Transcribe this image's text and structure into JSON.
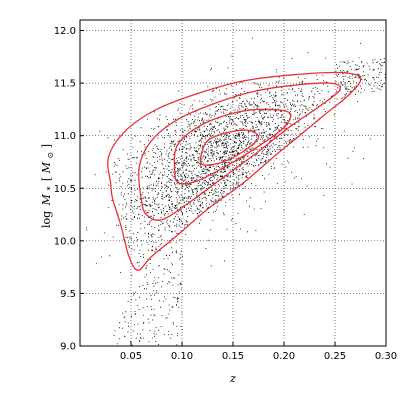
{
  "chart_data": {
    "type": "scatter",
    "title": "",
    "xlabel": "z",
    "ylabel_parts": {
      "log": "log",
      "M": "M",
      "sub": "*",
      "unit_open": "[",
      "unit_M": "M",
      "unit_sub": "⊙",
      "unit_close": "]"
    },
    "xlim": [
      0.0,
      0.3
    ],
    "ylim": [
      9.0,
      12.1
    ],
    "x_ticks": [
      0.05,
      0.1,
      0.15,
      0.2,
      0.25,
      0.3
    ],
    "x_tick_labels": [
      "0.05",
      "0.10",
      "0.15",
      "0.20",
      "0.25",
      "0.30"
    ],
    "y_ticks": [
      9.0,
      9.5,
      10.0,
      10.5,
      11.0,
      11.5,
      12.0
    ],
    "y_tick_labels": [
      "9.0",
      "9.5",
      "10.0",
      "10.5",
      "11.0",
      "11.5",
      "12.0"
    ],
    "grid": true,
    "point_color": "#000000",
    "contour_color": "#e8313a",
    "scatter_density": {
      "note_hidden": false,
      "approx_points": 9000,
      "center": [
        0.14,
        10.85
      ],
      "spread": [
        0.055,
        0.4
      ]
    },
    "contours": [
      {
        "level": "outer",
        "points": [
          [
            0.03,
            10.55
          ],
          [
            0.028,
            10.8
          ],
          [
            0.045,
            11.05
          ],
          [
            0.075,
            11.25
          ],
          [
            0.115,
            11.4
          ],
          [
            0.16,
            11.52
          ],
          [
            0.21,
            11.58
          ],
          [
            0.255,
            11.6
          ],
          [
            0.275,
            11.55
          ],
          [
            0.265,
            11.4
          ],
          [
            0.24,
            11.2
          ],
          [
            0.215,
            11.0
          ],
          [
            0.19,
            10.8
          ],
          [
            0.16,
            10.55
          ],
          [
            0.125,
            10.3
          ],
          [
            0.095,
            10.05
          ],
          [
            0.07,
            9.85
          ],
          [
            0.057,
            9.72
          ],
          [
            0.048,
            9.85
          ],
          [
            0.04,
            10.15
          ],
          [
            0.032,
            10.4
          ],
          [
            0.03,
            10.55
          ]
        ]
      },
      {
        "level": "mid",
        "points": [
          [
            0.06,
            10.4
          ],
          [
            0.058,
            10.7
          ],
          [
            0.07,
            10.95
          ],
          [
            0.095,
            11.15
          ],
          [
            0.13,
            11.3
          ],
          [
            0.17,
            11.42
          ],
          [
            0.21,
            11.48
          ],
          [
            0.245,
            11.5
          ],
          [
            0.255,
            11.44
          ],
          [
            0.235,
            11.28
          ],
          [
            0.205,
            11.08
          ],
          [
            0.175,
            10.85
          ],
          [
            0.14,
            10.6
          ],
          [
            0.105,
            10.35
          ],
          [
            0.08,
            10.2
          ],
          [
            0.065,
            10.25
          ],
          [
            0.06,
            10.4
          ]
        ]
      },
      {
        "level": "inner",
        "points": [
          [
            0.093,
            10.65
          ],
          [
            0.095,
            10.9
          ],
          [
            0.115,
            11.08
          ],
          [
            0.145,
            11.2
          ],
          [
            0.175,
            11.25
          ],
          [
            0.205,
            11.22
          ],
          [
            0.2,
            11.08
          ],
          [
            0.175,
            10.9
          ],
          [
            0.145,
            10.72
          ],
          [
            0.115,
            10.57
          ],
          [
            0.097,
            10.55
          ],
          [
            0.093,
            10.65
          ]
        ]
      },
      {
        "level": "core",
        "points": [
          [
            0.118,
            10.78
          ],
          [
            0.125,
            10.95
          ],
          [
            0.145,
            11.03
          ],
          [
            0.165,
            11.05
          ],
          [
            0.175,
            10.98
          ],
          [
            0.16,
            10.85
          ],
          [
            0.14,
            10.75
          ],
          [
            0.122,
            10.72
          ],
          [
            0.118,
            10.78
          ]
        ]
      }
    ]
  }
}
